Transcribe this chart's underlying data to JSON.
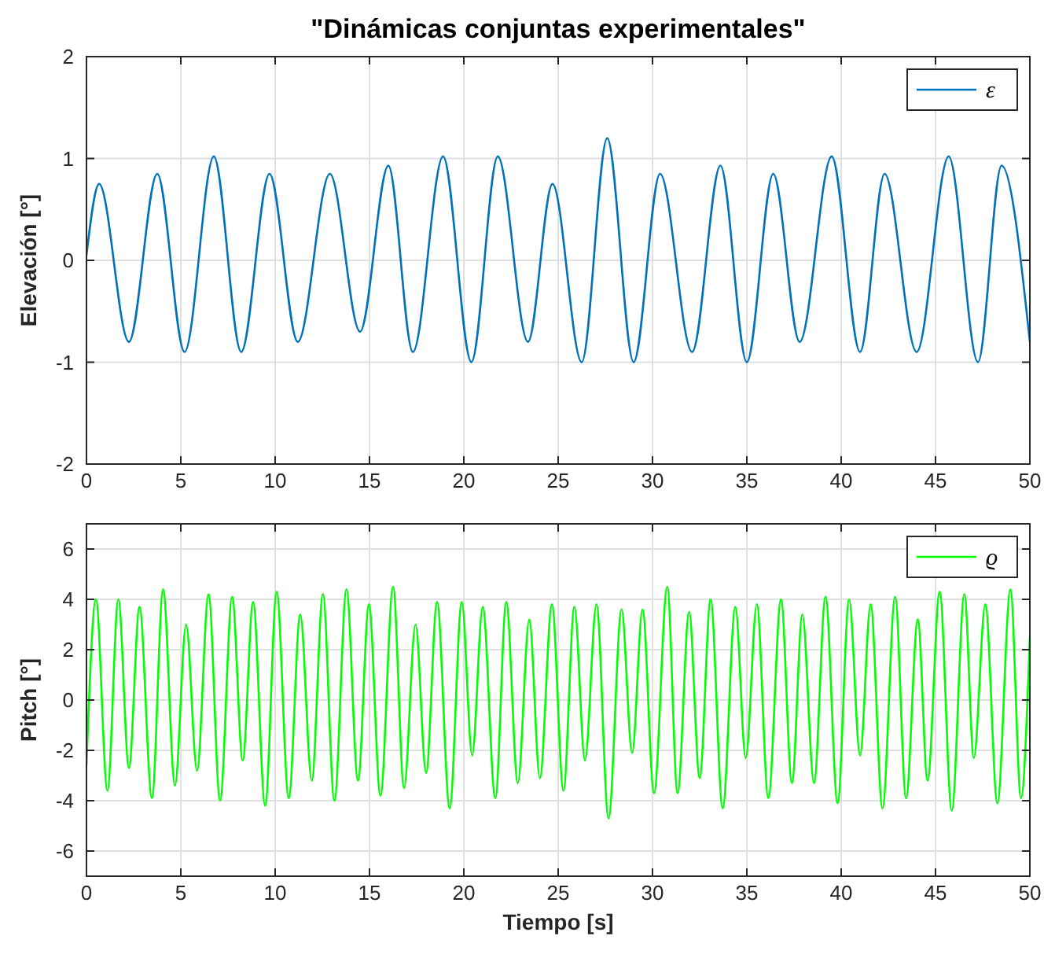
{
  "chart_data": [
    {
      "type": "line",
      "title": "\"Dinámicas conjuntas experimentales\"",
      "ylabel": "Elevación [°]",
      "xlim": [
        0,
        50
      ],
      "xticks": [
        0,
        5,
        10,
        15,
        20,
        25,
        30,
        35,
        40,
        45,
        50
      ],
      "ylim": [
        -2,
        2
      ],
      "yticks": [
        -2,
        -1,
        0,
        1,
        2
      ],
      "grid": true,
      "legend": "top right",
      "series": [
        {
          "name": "ε",
          "color": "#0072bd",
          "x": [
            0,
            0.67,
            2.25,
            3.75,
            5.2,
            6.75,
            8.2,
            9.7,
            11.2,
            12.9,
            14.5,
            16,
            17.3,
            18.9,
            20.4,
            21.8,
            23.4,
            24.7,
            26.25,
            27.6,
            29,
            30.4,
            32.1,
            33.6,
            35,
            36.4,
            37.8,
            39.5,
            41,
            42.3,
            44,
            45.7,
            47.25,
            48.5,
            50
          ],
          "values": [
            0.05,
            0.75,
            -0.8,
            0.85,
            -0.9,
            1.02,
            -0.9,
            0.85,
            -0.8,
            0.85,
            -0.7,
            0.93,
            -0.9,
            1.02,
            -1.0,
            1.02,
            -0.8,
            0.75,
            -1.0,
            1.2,
            -1.0,
            0.85,
            -0.9,
            0.93,
            -1.0,
            0.85,
            -0.8,
            1.02,
            -0.9,
            0.85,
            -0.9,
            1.02,
            -1.0,
            0.93,
            -0.8
          ]
        }
      ]
    },
    {
      "type": "line",
      "xlabel": "Tiempo [s]",
      "ylabel": "Pitch [°]",
      "xlim": [
        0,
        50
      ],
      "xticks": [
        0,
        5,
        10,
        15,
        20,
        25,
        30,
        35,
        40,
        45,
        50
      ],
      "ylim": [
        -7,
        7
      ],
      "yticks": [
        -6,
        -4,
        -2,
        0,
        2,
        4,
        6
      ],
      "grid": true,
      "legend": "top right",
      "series": [
        {
          "name": "ϱ",
          "color": "#00ff00",
          "x": [
            0,
            0.5,
            1.11,
            1.69,
            2.25,
            2.81,
            3.47,
            4.06,
            4.69,
            5.28,
            5.86,
            6.47,
            7.08,
            7.72,
            8.28,
            8.83,
            9.47,
            10.08,
            10.72,
            11.33,
            11.94,
            12.53,
            13.14,
            13.78,
            14.39,
            14.97,
            15.58,
            16.25,
            16.83,
            17.44,
            18.0,
            18.58,
            19.25,
            19.89,
            20.44,
            21.0,
            21.67,
            22.25,
            22.86,
            23.47,
            24.03,
            24.67,
            25.28,
            25.86,
            26.42,
            27.03,
            27.67,
            28.36,
            28.92,
            29.47,
            30.08,
            30.78,
            31.33,
            31.94,
            32.5,
            33.08,
            33.72,
            34.39,
            34.94,
            35.53,
            36.14,
            36.81,
            37.39,
            37.94,
            38.56,
            39.17,
            39.81,
            40.42,
            41.0,
            41.56,
            42.19,
            42.86,
            43.44,
            44.06,
            44.58,
            45.22,
            45.86,
            46.53,
            47.03,
            47.64,
            48.28,
            48.97,
            49.53,
            50
          ],
          "values": [
            -2.6,
            4.0,
            -3.6,
            4.0,
            -2.7,
            3.7,
            -3.9,
            4.4,
            -3.4,
            3.0,
            -2.8,
            4.2,
            -4.0,
            4.1,
            -2.4,
            3.9,
            -4.2,
            4.3,
            -3.9,
            3.4,
            -3.2,
            4.2,
            -4.0,
            4.4,
            -3.2,
            3.8,
            -3.8,
            4.5,
            -3.5,
            3.0,
            -2.9,
            3.9,
            -4.3,
            3.9,
            -2.2,
            3.7,
            -3.9,
            3.9,
            -3.3,
            3.2,
            -3.1,
            3.8,
            -3.6,
            3.7,
            -2.4,
            3.8,
            -4.7,
            3.6,
            -2.1,
            3.6,
            -3.7,
            4.5,
            -3.7,
            3.5,
            -3.1,
            4.0,
            -4.3,
            3.7,
            -2.3,
            3.8,
            -3.9,
            4.0,
            -3.3,
            3.4,
            -3.3,
            4.1,
            -4.1,
            4.0,
            -2.2,
            3.8,
            -4.3,
            4.1,
            -3.9,
            3.2,
            -3.2,
            4.3,
            -4.4,
            4.2,
            -2.3,
            3.8,
            -4.1,
            4.4,
            -3.9,
            2.5
          ]
        }
      ]
    }
  ]
}
